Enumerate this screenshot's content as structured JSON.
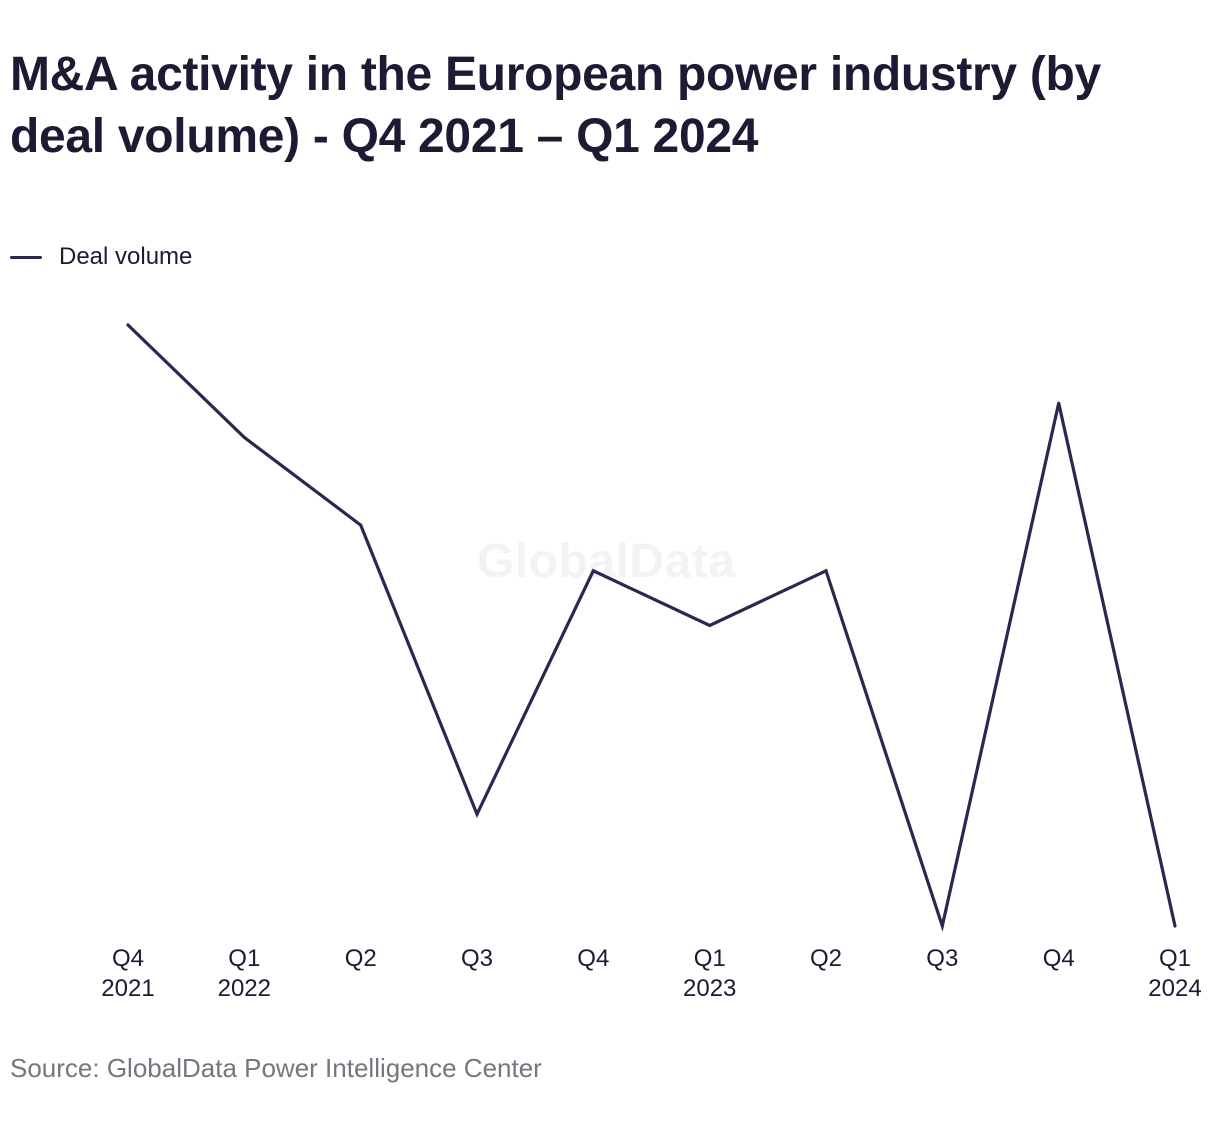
{
  "title": "M&A activity in the European power industry (by deal volume) - Q4 2021 – Q1 2024",
  "watermark": "GlobalData",
  "source": "Source: GlobalData Power Intelligence Center",
  "colors": {
    "line": "#33244f",
    "text": "#1d1a33",
    "source_text": "#77757f"
  },
  "chart_data": {
    "type": "line",
    "title": "M&A activity in the European power industry (by deal volume) - Q4 2021 – Q1 2024",
    "xlabel": "",
    "ylabel": "",
    "grid": false,
    "legend_position": "top-left",
    "categories": [
      {
        "quarter": "Q4",
        "year": "2021"
      },
      {
        "quarter": "Q1",
        "year": "2022"
      },
      {
        "quarter": "Q2",
        "year": ""
      },
      {
        "quarter": "Q3",
        "year": ""
      },
      {
        "quarter": "Q4",
        "year": ""
      },
      {
        "quarter": "Q1",
        "year": "2023"
      },
      {
        "quarter": "Q2",
        "year": ""
      },
      {
        "quarter": "Q3",
        "year": ""
      },
      {
        "quarter": "Q4",
        "year": ""
      },
      {
        "quarter": "Q1",
        "year": "2024"
      }
    ],
    "series": [
      {
        "name": "Deal volume",
        "values": [
          1.0,
          0.813,
          0.667,
          0.186,
          0.591,
          0.5,
          0.591,
          0.0,
          0.87,
          0.0
        ]
      }
    ],
    "ylim": [
      0,
      1
    ]
  }
}
